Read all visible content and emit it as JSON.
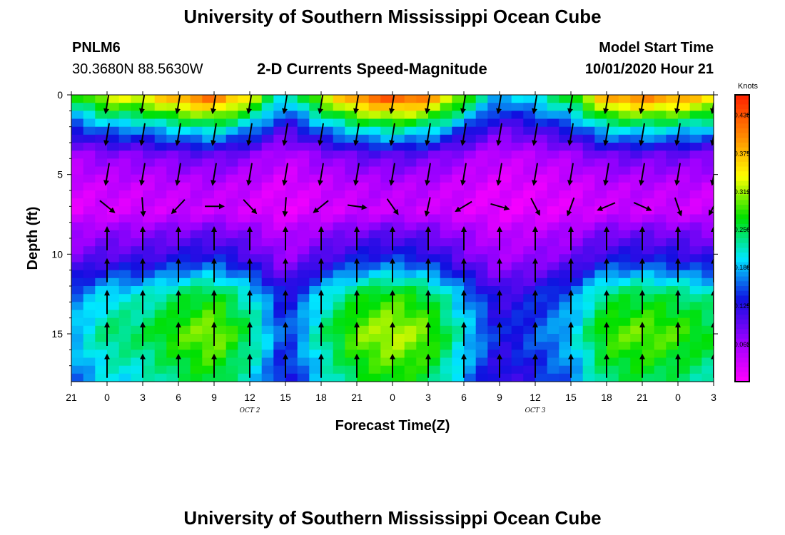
{
  "header": {
    "title": "University of Southern Mississippi Ocean Cube",
    "station": "PNLM6",
    "coords": "30.3680N 88.5630W",
    "subtitle": "2-D Currents Speed-Magnitude",
    "model_start_label": "Model Start Time",
    "model_start_value": "10/01/2020 Hour 21"
  },
  "footer": {
    "title": "University of Southern Mississippi Ocean Cube"
  },
  "chart_data": {
    "type": "heatmap",
    "title": "2-D Currents Speed-Magnitude",
    "xlabel": "Forecast Time(Z)",
    "ylabel": "Depth (ft)",
    "x_ticks": [
      "21",
      "0",
      "3",
      "6",
      "9",
      "12",
      "15",
      "18",
      "21",
      "0",
      "3",
      "6",
      "9",
      "12",
      "15",
      "18",
      "21",
      "0",
      "3"
    ],
    "x_hours": [
      0,
      3,
      6,
      9,
      12,
      15,
      18,
      21,
      24,
      27,
      30,
      33,
      36,
      39,
      42,
      45,
      48,
      51,
      54
    ],
    "xlim": [
      0,
      54
    ],
    "date_labels": [
      {
        "text": "OCT 2",
        "hour": 15
      },
      {
        "text": "OCT 3",
        "hour": 39
      }
    ],
    "y_ticks": [
      0,
      5,
      10,
      15
    ],
    "ylim": [
      0,
      18
    ],
    "colorbar": {
      "unit": "Knots",
      "ticks": [
        "0.438",
        "0.375",
        "0.312",
        "0.250",
        "0.188",
        "0.125",
        "0.062"
      ],
      "tick_values": [
        0.438,
        0.375,
        0.312,
        0.25,
        0.188,
        0.125,
        0.062
      ],
      "range": [
        0,
        0.47
      ],
      "colors": [
        "#ff00ff",
        "#9a00ff",
        "#1010e0",
        "#00e8ff",
        "#00e000",
        "#ffff00",
        "#ff8800",
        "#ff2000"
      ]
    },
    "depth_profile_knots": [
      {
        "depth": 0.2,
        "speed": 0.35
      },
      {
        "depth": 2.2,
        "speed": 0.18
      },
      {
        "depth": 3.8,
        "speed": 0.08
      },
      {
        "depth": 5.6,
        "speed": 0.04
      },
      {
        "depth": 7.4,
        "speed": 0.03
      },
      {
        "depth": 8.4,
        "speed": 0.07
      },
      {
        "depth": 10.4,
        "speed": 0.12
      },
      {
        "depth": 12.5,
        "speed": 0.22
      },
      {
        "depth": 15.0,
        "speed": 0.26
      },
      {
        "depth": 17.8,
        "speed": 0.22
      }
    ],
    "temporal_modulation": [
      {
        "hour": 0,
        "factor": 0.72
      },
      {
        "hour": 3,
        "factor": 0.92
      },
      {
        "hour": 6,
        "factor": 0.95
      },
      {
        "hour": 9,
        "factor": 1.1
      },
      {
        "hour": 12,
        "factor": 1.2
      },
      {
        "hour": 15,
        "factor": 0.95
      },
      {
        "hour": 18,
        "factor": 0.55
      },
      {
        "hour": 21,
        "factor": 0.9
      },
      {
        "hour": 24,
        "factor": 1.15
      },
      {
        "hour": 27,
        "factor": 1.25
      },
      {
        "hour": 30,
        "factor": 1.15
      },
      {
        "hour": 33,
        "factor": 0.8
      },
      {
        "hour": 36,
        "factor": 0.5
      },
      {
        "hour": 39,
        "factor": 0.6
      },
      {
        "hour": 42,
        "factor": 0.75
      },
      {
        "hour": 45,
        "factor": 1.1
      },
      {
        "hour": 48,
        "factor": 1.15
      },
      {
        "hour": 51,
        "factor": 1.1
      },
      {
        "hour": 54,
        "factor": 1.0
      }
    ],
    "vector_columns_hours": [
      3,
      6,
      9,
      12,
      15,
      18,
      21,
      24,
      27,
      30,
      33,
      36,
      39,
      42,
      45,
      48,
      51,
      54
    ],
    "vectors": [
      {
        "depth": 0.5,
        "direction": "down"
      },
      {
        "depth": 2.5,
        "direction": "down"
      },
      {
        "depth": 5.0,
        "direction": "down"
      },
      {
        "depth": 7.0,
        "direction": "mixed"
      },
      {
        "depth": 9.0,
        "direction": "up"
      },
      {
        "depth": 11.0,
        "direction": "up"
      },
      {
        "depth": 13.0,
        "direction": "up"
      },
      {
        "depth": 15.0,
        "direction": "up"
      },
      {
        "depth": 17.0,
        "direction": "up"
      }
    ]
  }
}
